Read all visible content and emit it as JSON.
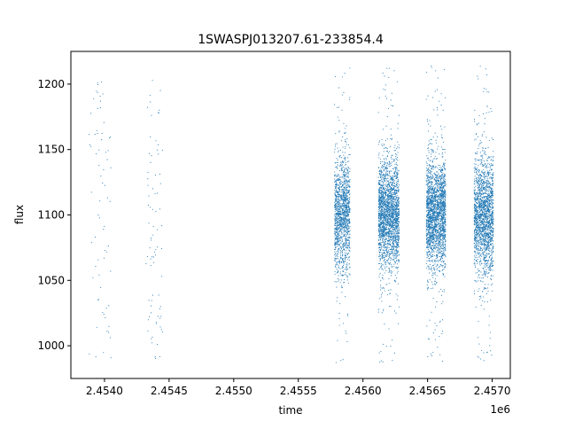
{
  "chart_data": {
    "type": "scatter",
    "title": "1SWASPJ013207.61-233854.4",
    "xlabel": "time",
    "ylabel": "flux",
    "x_offset_label": "1e6",
    "xlim": [
      2.45374,
      2.45714
    ],
    "ylim": [
      975,
      1225
    ],
    "x_ticks": [
      2.454,
      2.4545,
      2.455,
      2.4555,
      2.456,
      2.4565,
      2.457
    ],
    "x_tick_labels": [
      "2.4540",
      "2.4545",
      "2.4550",
      "2.4555",
      "2.4560",
      "2.4565",
      "2.4570"
    ],
    "y_ticks": [
      1000,
      1050,
      1100,
      1150,
      1200
    ],
    "y_tick_labels": [
      "1000",
      "1050",
      "1100",
      "1150",
      "1200"
    ],
    "grid": false,
    "marker_color": "#1f77b4",
    "series": [
      {
        "clusters": [
          {
            "x_min": 2.45388,
            "x_max": 2.45405,
            "y_center": 1100,
            "spread": 45,
            "count": 70
          },
          {
            "x_min": 2.45432,
            "x_max": 2.45445,
            "y_center": 1100,
            "spread": 45,
            "count": 80
          },
          {
            "x_min": 2.45578,
            "x_max": 2.4559,
            "y_center": 1100,
            "spread": 22,
            "count": 1400
          },
          {
            "x_min": 2.45612,
            "x_max": 2.45628,
            "y_center": 1100,
            "spread": 20,
            "count": 2200
          },
          {
            "x_min": 2.45649,
            "x_max": 2.45664,
            "y_center": 1100,
            "spread": 20,
            "count": 2200
          },
          {
            "x_min": 2.45686,
            "x_max": 2.45701,
            "y_center": 1100,
            "spread": 22,
            "count": 1900
          }
        ]
      }
    ]
  }
}
